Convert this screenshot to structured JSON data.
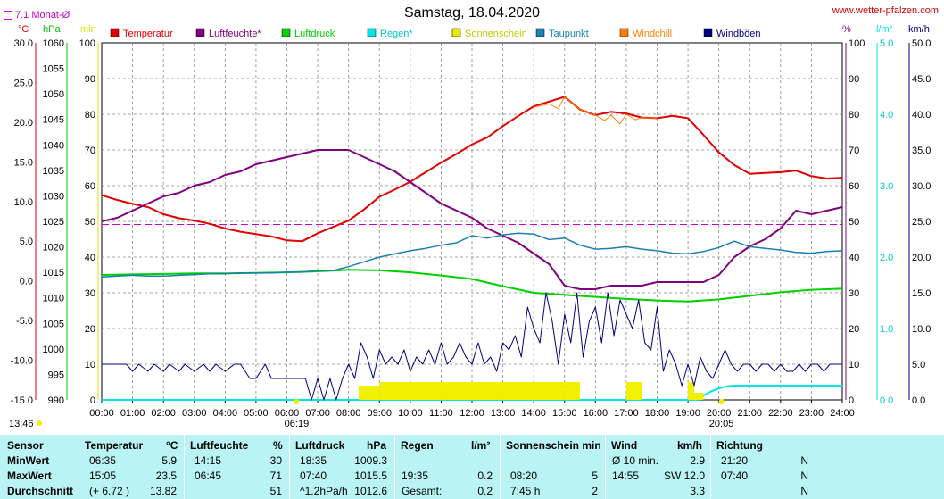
{
  "header": {
    "title": "Samstag, 18.04.2020",
    "site": "www.wetter-pfalzen.com",
    "monat_label": "7.1 Monat-Ø",
    "time_left": "13:46",
    "sunrise": "06:19",
    "sunset": "20:05"
  },
  "axis_units": {
    "temp": "°C",
    "hpa": "hPa",
    "min": "min",
    "percent": "%",
    "rain": "l/m²",
    "wind": "km/h"
  },
  "legend": [
    {
      "label": "Temperatur",
      "color": "#e00000"
    },
    {
      "label": "Luftfeuchte*",
      "color": "#800080"
    },
    {
      "label": "Luftdruck",
      "color": "#00d000"
    },
    {
      "label": "Regen*",
      "color": "#00e5e5"
    },
    {
      "label": "Sonnenschein",
      "color": "#e8e800"
    },
    {
      "label": "Taupunkt",
      "color": "#1a80b0"
    },
    {
      "label": "Windchill",
      "color": "#ff8000"
    },
    {
      "label": "Windböen",
      "color": "#000080"
    }
  ],
  "chart_data": {
    "type": "line",
    "title": "Samstag, 18.04.2020",
    "x_ticks": [
      "00:00",
      "01:00",
      "02:00",
      "03:00",
      "04:00",
      "05:00",
      "06:00",
      "07:00",
      "08:00",
      "09:00",
      "10:00",
      "11:00",
      "12:00",
      "13:00",
      "14:00",
      "15:00",
      "16:00",
      "17:00",
      "18:00",
      "19:00",
      "20:00",
      "21:00",
      "22:00",
      "23:00",
      "24:00"
    ],
    "axes": {
      "temp": {
        "min": -15,
        "max": 30,
        "ticks": [
          "30.0",
          "25.0",
          "20.0",
          "15.0",
          "10.0",
          "5.0",
          "0.0",
          "-5.0",
          "-10.0",
          "-15.0"
        ]
      },
      "hpa": {
        "min": 990,
        "max": 1060,
        "ticks": [
          "1060",
          "1055",
          "1050",
          "1045",
          "1040",
          "1035",
          "1030",
          "1025",
          "1020",
          "1015",
          "1010",
          "1005",
          "1000",
          "995",
          "990"
        ]
      },
      "min": {
        "min": 0,
        "max": 100,
        "ticks": [
          "100",
          "90",
          "80",
          "70",
          "60",
          "50",
          "40",
          "30",
          "20",
          "10",
          "0"
        ]
      },
      "percent": {
        "min": 0,
        "max": 100,
        "ticks": [
          "100",
          "90",
          "80",
          "70",
          "60",
          "50",
          "40",
          "30",
          "20",
          "10",
          "0"
        ]
      },
      "rain": {
        "min": 0,
        "max": 5,
        "ticks": [
          "5.0",
          "4.0",
          "3.0",
          "2.0",
          "1.0",
          "0.0"
        ]
      },
      "wind": {
        "min": 0,
        "max": 50,
        "ticks": [
          "50.0",
          "45.0",
          "40.0",
          "35.0",
          "30.0",
          "25.0",
          "20.0",
          "15.0",
          "10.0",
          "5.0",
          "0.0"
        ]
      }
    },
    "monat_avg_temp": 7.1,
    "series": [
      {
        "name": "Temperatur",
        "unit": "°C",
        "x": [
          0,
          0.5,
          1,
          1.5,
          2,
          2.5,
          3,
          3.5,
          4,
          4.5,
          5,
          5.5,
          6,
          6.5,
          7,
          7.5,
          8,
          8.5,
          9,
          9.5,
          10,
          10.5,
          11,
          11.5,
          12,
          12.5,
          13,
          13.5,
          14,
          14.5,
          15,
          15.5,
          16,
          16.5,
          17,
          17.5,
          18,
          18.5,
          19,
          19.5,
          20,
          20.5,
          21,
          21.5,
          22,
          22.5,
          23,
          23.5,
          24
        ],
        "y": [
          10.8,
          10.2,
          9.7,
          9.3,
          8.4,
          7.9,
          7.6,
          7.2,
          6.6,
          6.2,
          5.9,
          5.6,
          5.1,
          5.0,
          6.0,
          6.8,
          7.6,
          9.0,
          10.6,
          11.5,
          12.5,
          13.7,
          14.9,
          16.0,
          17.2,
          18.1,
          19.5,
          20.8,
          22.0,
          22.6,
          23.2,
          21.6,
          20.9,
          21.3,
          21.1,
          20.6,
          20.5,
          20.8,
          20.5,
          18.4,
          16.2,
          14.6,
          13.5,
          13.6,
          13.7,
          13.9,
          13.2,
          12.9,
          13.0
        ]
      },
      {
        "name": "Luftfeuchte*",
        "unit": "%",
        "x": [
          0,
          0.5,
          1,
          1.5,
          2,
          2.5,
          3,
          3.5,
          4,
          4.5,
          5,
          5.5,
          6,
          6.5,
          7,
          7.5,
          8,
          8.5,
          9,
          9.5,
          10,
          10.5,
          11,
          11.5,
          12,
          12.5,
          13,
          13.5,
          14,
          14.5,
          15,
          15.5,
          16,
          16.5,
          17,
          17.5,
          18,
          18.5,
          19,
          19.5,
          20,
          20.5,
          21,
          21.5,
          22,
          22.5,
          23,
          23.5,
          24
        ],
        "y": [
          50,
          51,
          53,
          55,
          57,
          58,
          60,
          61,
          63,
          64,
          66,
          67,
          68,
          69,
          70,
          70,
          70,
          68,
          66,
          64,
          61,
          58,
          55,
          53,
          51,
          48,
          46,
          44,
          41,
          38,
          32,
          31,
          31,
          32,
          32,
          32,
          33,
          33,
          33,
          33,
          35,
          40,
          43,
          45,
          48,
          53,
          52,
          53,
          54
        ]
      },
      {
        "name": "Luftdruck",
        "unit": "hPa",
        "x": [
          0,
          1,
          2,
          3,
          4,
          5,
          6,
          7,
          8,
          9,
          10,
          11,
          12,
          13,
          14,
          15,
          16,
          17,
          18,
          19,
          20,
          21,
          22,
          23,
          24
        ],
        "y": [
          1014.5,
          1014.6,
          1014.7,
          1014.8,
          1014.8,
          1014.9,
          1015.0,
          1015.2,
          1015.5,
          1015.4,
          1015.0,
          1014.4,
          1013.7,
          1012.3,
          1011.0,
          1010.6,
          1010.2,
          1009.8,
          1009.5,
          1009.3,
          1009.7,
          1010.4,
          1011.1,
          1011.6,
          1011.8
        ]
      },
      {
        "name": "Regen*",
        "unit": "l/m²",
        "x": [
          0,
          19.35,
          19.5,
          19.75,
          20,
          20.25,
          20.5,
          21,
          22,
          23,
          24
        ],
        "y": [
          0,
          0,
          0.06,
          0.12,
          0.16,
          0.19,
          0.2,
          0.2,
          0.2,
          0.2,
          0.2
        ]
      },
      {
        "name": "Sonnenschein",
        "unit": "min",
        "x": [
          8.33,
          9.0,
          10.0,
          11.0,
          12.0,
          13.0,
          14.0,
          15.0,
          15.5,
          16.0,
          16.5,
          17.0,
          17.5,
          18.0,
          18.5,
          19.0,
          19.2,
          19.5,
          20.0
        ],
        "y": [
          4,
          5,
          5,
          5,
          5,
          5,
          5,
          5,
          0,
          0,
          0,
          5,
          0,
          0,
          0,
          5,
          2,
          0,
          0
        ]
      },
      {
        "name": "Taupunkt",
        "unit": "°C",
        "x": [
          0,
          0.5,
          1,
          1.5,
          2,
          2.5,
          3,
          3.5,
          4,
          4.5,
          5,
          5.5,
          6,
          6.5,
          7,
          7.5,
          8,
          8.5,
          9,
          9.5,
          10,
          10.5,
          11,
          11.5,
          12,
          12.5,
          13,
          13.5,
          14,
          14.5,
          15,
          15.5,
          16,
          16.5,
          17,
          17.5,
          18,
          18.5,
          19,
          19.5,
          20,
          20.5,
          21,
          21.5,
          22,
          22.5,
          23,
          23.5,
          24
        ],
        "y": [
          0.5,
          0.6,
          0.7,
          0.6,
          0.6,
          0.7,
          0.8,
          0.9,
          0.9,
          1.0,
          1.0,
          1.0,
          1.1,
          1.1,
          1.3,
          1.3,
          1.8,
          2.4,
          3.0,
          3.4,
          3.8,
          4.1,
          4.5,
          4.8,
          5.7,
          5.4,
          5.8,
          6.0,
          5.9,
          5.2,
          5.4,
          4.5,
          4.0,
          4.1,
          4.3,
          4.0,
          3.8,
          3.5,
          3.4,
          3.7,
          4.2,
          5.0,
          4.3,
          4.1,
          3.9,
          3.6,
          3.5,
          3.7,
          3.8
        ]
      },
      {
        "name": "Windchill",
        "unit": "°C",
        "x": [
          14.0,
          14.5,
          14.8,
          15.0,
          15.5,
          16.0,
          16.3,
          16.5,
          16.8,
          17.0,
          17.3,
          17.5,
          18.0
        ],
        "y": [
          21.9,
          22.3,
          21.7,
          23.2,
          21.6,
          20.9,
          20.2,
          20.9,
          19.8,
          21.0,
          20.3,
          20.6,
          20.5
        ]
      },
      {
        "name": "Windböen",
        "unit": "km/h",
        "x": [
          0,
          0.5,
          0.8,
          1,
          1.2,
          1.5,
          1.7,
          2,
          2.2,
          2.5,
          2.7,
          3,
          3.3,
          3.5,
          3.7,
          4,
          4.3,
          4.5,
          4.8,
          5,
          5.3,
          5.5,
          5.8,
          6,
          6.3,
          6.6,
          6.8,
          7,
          7.2,
          7.4,
          7.6,
          7.8,
          8,
          8.2,
          8.4,
          8.6,
          8.8,
          9,
          9.2,
          9.4,
          9.6,
          9.8,
          10,
          10.2,
          10.4,
          10.6,
          10.8,
          11,
          11.2,
          11.4,
          11.6,
          11.8,
          12,
          12.2,
          12.4,
          12.6,
          12.8,
          13,
          13.2,
          13.4,
          13.6,
          13.8,
          14,
          14.2,
          14.4,
          14.6,
          14.8,
          15,
          15.2,
          15.4,
          15.6,
          15.8,
          16,
          16.2,
          16.4,
          16.6,
          16.8,
          17,
          17.2,
          17.4,
          17.6,
          17.8,
          18,
          18.2,
          18.4,
          18.6,
          18.8,
          19,
          19.2,
          19.4,
          19.6,
          19.8,
          20,
          20.2,
          20.4,
          20.6,
          20.8,
          21,
          21.2,
          21.4,
          21.6,
          21.8,
          22,
          22.2,
          22.4,
          22.6,
          22.8,
          23,
          23.2,
          23.4,
          23.6,
          23.8,
          24
        ],
        "y": [
          5,
          5,
          5,
          4,
          5,
          4,
          5,
          4,
          5,
          4,
          5,
          4,
          5,
          4,
          5,
          4,
          5,
          5,
          3,
          3,
          5,
          3,
          3,
          3,
          3,
          3,
          0,
          3,
          0,
          3,
          0,
          3,
          5,
          3,
          8,
          6,
          3,
          7,
          5,
          6,
          5,
          7,
          4,
          6,
          5,
          7,
          5,
          8,
          5,
          6,
          8,
          6,
          5,
          8,
          5,
          6,
          4,
          8,
          7,
          9,
          6,
          13,
          10,
          8,
          15,
          11,
          5,
          12,
          8,
          15,
          6,
          11,
          13,
          8,
          15,
          9,
          14,
          12,
          10,
          14,
          8,
          7,
          13,
          4,
          7,
          5,
          2,
          5,
          2,
          6,
          4,
          3,
          5,
          7,
          5,
          4,
          5,
          5,
          4,
          5,
          5,
          4,
          5,
          4,
          4,
          5,
          4,
          5,
          5,
          4,
          5,
          5,
          5
        ]
      }
    ]
  },
  "table": {
    "headers": {
      "sensor": "Sensor",
      "temperatur": "Temperatur",
      "temperatur_unit": "°C",
      "luftfeuchte": "Luftfeuchte",
      "luftfeuchte_unit": "%",
      "luftdruck": "Luftdruck",
      "luftdruck_unit": "hPa",
      "regen": "Regen",
      "regen_unit": "l/m²",
      "sonnenschein": "Sonnenschein min",
      "wind": "Wind",
      "wind_unit": "km/h",
      "richtung": "Richtung"
    },
    "rows": [
      {
        "label": "MinWert",
        "temp_time": "06:35",
        "temp_val": "5.9",
        "lf_time": "14:15",
        "lf_val": "30",
        "ld_time": "18:35",
        "ld_val": "1009.3",
        "rg_time": "",
        "rg_val": "",
        "ss_time": "",
        "ss_val": "",
        "wd_label": "Ø 10 min.",
        "wd_val": "2.9",
        "ri_time": "21:20",
        "ri_val": "N"
      },
      {
        "label": "MaxWert",
        "temp_time": "15:05",
        "temp_val": "23.5",
        "lf_time": "06:45",
        "lf_val": "71",
        "ld_time": "07:40",
        "ld_val": "1015.5",
        "rg_time": "19:35",
        "rg_val": "0.2",
        "ss_time": "08:20",
        "ss_val": "5",
        "wd_label": "14:55",
        "wd_val": "SW 12.0",
        "ri_time": "07:40",
        "ri_val": "N"
      },
      {
        "label": "Durchschnitt",
        "temp_time": "(+ 6.72 )",
        "temp_val": "13.82",
        "lf_time": "",
        "lf_val": "51",
        "ld_time": "^1.2hPa/h",
        "ld_val": "1012.6",
        "rg_time": "Gesamt:",
        "rg_val": "0.2",
        "ss_time": "7:45 h",
        "ss_val": "2",
        "wd_label": "",
        "wd_val": "3.3",
        "ri_time": "",
        "ri_val": "N"
      }
    ]
  }
}
